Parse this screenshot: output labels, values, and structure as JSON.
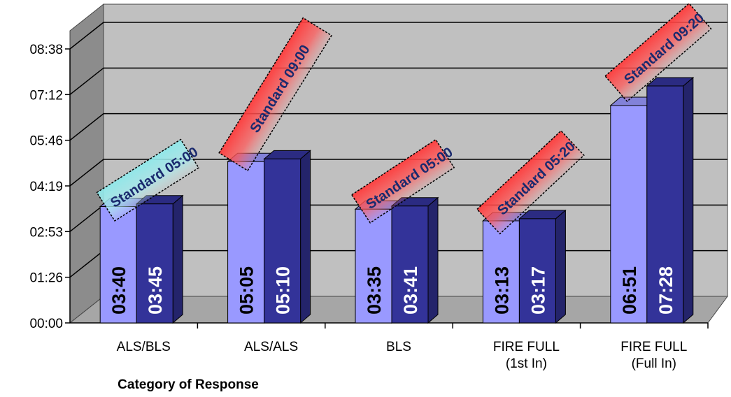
{
  "chart_data": {
    "type": "bar",
    "xlabel": "Category of Response",
    "ylabel": "",
    "y_ticks": [
      "00:00",
      "01:26",
      "02:53",
      "04:19",
      "05:46",
      "07:12",
      "08:38"
    ],
    "ylim_seconds": [
      0,
      518
    ],
    "grid": true,
    "categories": [
      {
        "lines": [
          "ALS/BLS"
        ]
      },
      {
        "lines": [
          "ALS/ALS"
        ]
      },
      {
        "lines": [
          "BLS"
        ]
      },
      {
        "lines": [
          "FIRE FULL",
          "(1st In)"
        ]
      },
      {
        "lines": [
          "FIRE FULL",
          "(Full In)"
        ]
      }
    ],
    "series": [
      {
        "values": [
          "03:40",
          "05:05",
          "03:35",
          "03:13",
          "06:51"
        ],
        "color": "#9999ff"
      },
      {
        "values": [
          "03:45",
          "05:10",
          "03:41",
          "03:17",
          "07:28"
        ],
        "color": "#333399"
      }
    ],
    "standards": [
      {
        "label": "Standard 05:00",
        "value": "05:00",
        "style": "cyan"
      },
      {
        "label": "Standard 09:00",
        "value": "09:00",
        "style": "red"
      },
      {
        "label": "Standard 05:00",
        "value": "05:00",
        "style": "red"
      },
      {
        "label": "Standard 05:20",
        "value": "05:20",
        "style": "red"
      },
      {
        "label": "Standard 09:20",
        "value": "09:20",
        "style": "red"
      }
    ],
    "colors": {
      "wall": "#c0c0c0",
      "floor": "#a6a6a6",
      "side_wall": "#8c8c8c",
      "standard_red": "#ff3b3b",
      "standard_cyan": "#8fe8ea",
      "standard_text": "#1a2a6e"
    }
  }
}
